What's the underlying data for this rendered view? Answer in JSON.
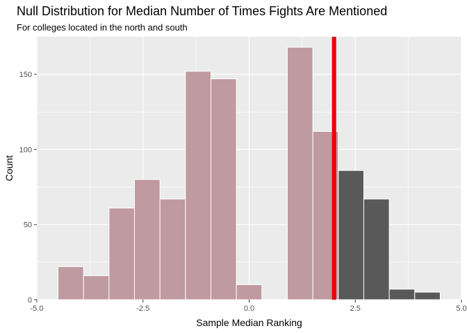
{
  "chart_data": {
    "type": "bar",
    "title": "Null Distribution for Median Number of Times Fights Are Mentioned",
    "subtitle": "For colleges located in the north and south",
    "xlabel": "Sample Median Ranking",
    "ylabel": "Count",
    "xlim": [
      -5.0,
      5.0
    ],
    "ylim": [
      0,
      175
    ],
    "x_ticks": [
      -5.0,
      -2.5,
      0.0,
      2.5,
      5.0
    ],
    "x_tick_labels": [
      "-5.0",
      "-2.5",
      "0.0",
      "2.5",
      "5.0"
    ],
    "y_ticks": [
      0,
      50,
      100,
      150
    ],
    "y_tick_labels": [
      "0",
      "50",
      "100",
      "150"
    ],
    "grid": true,
    "bin_width": 0.6,
    "bins": [
      {
        "x0": -4.5,
        "x1": -3.9,
        "count": 22,
        "shaded": true
      },
      {
        "x0": -3.9,
        "x1": -3.3,
        "count": 16,
        "shaded": true
      },
      {
        "x0": -3.3,
        "x1": -2.7,
        "count": 61,
        "shaded": true
      },
      {
        "x0": -2.7,
        "x1": -2.1,
        "count": 80,
        "shaded": true
      },
      {
        "x0": -2.1,
        "x1": -1.5,
        "count": 67,
        "shaded": true
      },
      {
        "x0": -1.5,
        "x1": -0.9,
        "count": 152,
        "shaded": true
      },
      {
        "x0": -0.9,
        "x1": -0.3,
        "count": 147,
        "shaded": true
      },
      {
        "x0": -0.3,
        "x1": 0.3,
        "count": 10,
        "shaded": true
      },
      {
        "x0": 0.3,
        "x1": 0.9,
        "count": 0,
        "shaded": true
      },
      {
        "x0": 0.9,
        "x1": 1.5,
        "count": 168,
        "shaded": true
      },
      {
        "x0": 1.5,
        "x1": 2.1,
        "count": 112,
        "shaded": true
      },
      {
        "x0": 2.1,
        "x1": 2.7,
        "count": 86,
        "shaded": false
      },
      {
        "x0": 2.7,
        "x1": 3.3,
        "count": 67,
        "shaded": false
      },
      {
        "x0": 3.3,
        "x1": 3.9,
        "count": 7,
        "shaded": false
      },
      {
        "x0": 3.9,
        "x1": 4.5,
        "count": 5,
        "shaded": false
      }
    ],
    "observed_statistic": 2.0,
    "colors": {
      "shaded_bar": "#bf9aa0",
      "unshaded_bar": "#595959",
      "bar_outline": "#ffffff",
      "observed_line": "#ee0000",
      "panel_background": "#ebebeb",
      "grid": "#ffffff"
    }
  }
}
